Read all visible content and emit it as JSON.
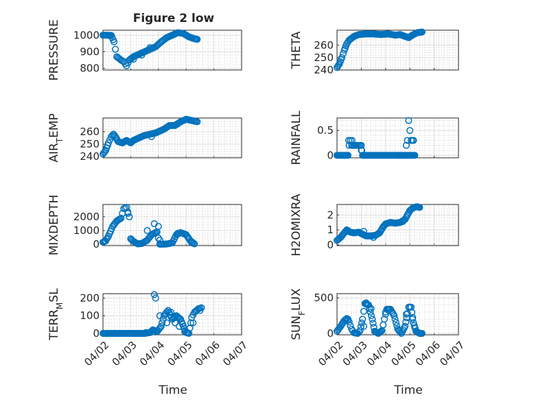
{
  "figure": {
    "title": "Figure 2 low",
    "xlabel": "Time"
  },
  "chart_data": [
    {
      "id": "pressure",
      "type": "scatter",
      "title": "Figure 2 low",
      "ylabel": "PRESSURE",
      "ylabel_sub": "",
      "xlim": [
        0,
        5
      ],
      "ylim": [
        790,
        1030
      ],
      "yticks": [
        800,
        900,
        1000
      ],
      "ytick_labels": [
        "800",
        "900",
        "1000"
      ],
      "xticks": [
        0,
        1,
        2,
        3,
        4,
        5
      ],
      "xtick_labels": [],
      "anchors": [
        [
          0,
          1000
        ],
        [
          0.15,
          1000
        ],
        [
          0.3,
          998
        ],
        [
          0.4,
          960
        ],
        [
          0.5,
          870
        ],
        [
          0.65,
          850
        ],
        [
          0.75,
          840
        ],
        [
          0.85,
          815
        ],
        [
          0.95,
          850
        ],
        [
          1.1,
          870
        ],
        [
          1.3,
          885
        ],
        [
          1.5,
          900
        ],
        [
          1.7,
          915
        ],
        [
          1.9,
          930
        ],
        [
          2.1,
          960
        ],
        [
          2.3,
          985
        ],
        [
          2.5,
          1000
        ],
        [
          2.7,
          1015
        ],
        [
          2.9,
          1010
        ],
        [
          3.1,
          990
        ],
        [
          3.3,
          978
        ],
        [
          3.4,
          975
        ]
      ],
      "extra": [
        [
          1.1,
          855
        ],
        [
          1.4,
          880
        ],
        [
          1.7,
          925
        ]
      ]
    },
    {
      "id": "theta",
      "type": "scatter",
      "title": "",
      "ylabel": "THETA",
      "ylabel_sub": "",
      "xlim": [
        0,
        5
      ],
      "ylim": [
        240,
        272
      ],
      "yticks": [
        240,
        250,
        260
      ],
      "ytick_labels": [
        "240",
        "250",
        "260"
      ],
      "xticks": [
        0,
        1,
        2,
        3,
        4,
        5
      ],
      "xtick_labels": [],
      "anchors": [
        [
          0,
          242
        ],
        [
          0.1,
          245
        ],
        [
          0.2,
          250
        ],
        [
          0.3,
          256
        ],
        [
          0.4,
          261
        ],
        [
          0.5,
          264
        ],
        [
          0.7,
          267
        ],
        [
          0.9,
          268.5
        ],
        [
          1.2,
          269
        ],
        [
          1.5,
          269
        ],
        [
          1.8,
          268.5
        ],
        [
          2.1,
          269
        ],
        [
          2.4,
          268
        ],
        [
          2.6,
          268.5
        ],
        [
          2.8,
          267
        ],
        [
          2.95,
          266
        ],
        [
          3.1,
          268
        ],
        [
          3.2,
          269
        ],
        [
          3.3,
          270
        ],
        [
          3.5,
          270.5
        ]
      ],
      "extra": []
    },
    {
      "id": "air_temp",
      "type": "scatter",
      "title": "",
      "ylabel": "AIR",
      "ylabel_sub": "T",
      "ylabel_suffix": "EMP",
      "xlim": [
        0,
        5
      ],
      "ylim": [
        239,
        271
      ],
      "yticks": [
        240,
        250,
        260
      ],
      "ytick_labels": [
        "240",
        "250",
        "260"
      ],
      "xticks": [
        0,
        1,
        2,
        3,
        4,
        5
      ],
      "xtick_labels": [],
      "anchors": [
        [
          0,
          242
        ],
        [
          0.1,
          245
        ],
        [
          0.2,
          251
        ],
        [
          0.3,
          256
        ],
        [
          0.38,
          258
        ],
        [
          0.45,
          256
        ],
        [
          0.55,
          252
        ],
        [
          0.7,
          251
        ],
        [
          0.85,
          253
        ],
        [
          1.0,
          251
        ],
        [
          1.1,
          253
        ],
        [
          1.3,
          255
        ],
        [
          1.5,
          257
        ],
        [
          1.7,
          258
        ],
        [
          1.9,
          259
        ],
        [
          2.0,
          260
        ],
        [
          2.2,
          262
        ],
        [
          2.4,
          265
        ],
        [
          2.6,
          265
        ],
        [
          2.8,
          268
        ],
        [
          3.0,
          270
        ],
        [
          3.2,
          269
        ],
        [
          3.4,
          268
        ]
      ],
      "extra": [
        [
          1.75,
          256
        ]
      ]
    },
    {
      "id": "rainfall",
      "type": "scatter",
      "title": "",
      "ylabel": "RAINFALL",
      "ylabel_sub": "",
      "xlim": [
        0,
        5
      ],
      "ylim": [
        -0.05,
        0.75
      ],
      "yticks": [
        0,
        0.5
      ],
      "ytick_labels": [
        "0",
        "0.5"
      ],
      "xticks": [
        0,
        1,
        2,
        3,
        4,
        5
      ],
      "xtick_labels": [],
      "anchors": [
        [
          0,
          0
        ],
        [
          0.45,
          0
        ],
        [
          0.5,
          0.2
        ],
        [
          0.55,
          0.3
        ],
        [
          0.6,
          0.2
        ],
        [
          0.7,
          0.2
        ],
        [
          0.8,
          0.2
        ],
        [
          0.9,
          0.2
        ],
        [
          0.95,
          0.2
        ],
        [
          1.0,
          0.1
        ],
        [
          1.05,
          0
        ],
        [
          2.5,
          0
        ],
        [
          2.9,
          0
        ],
        [
          3.0,
          0
        ],
        [
          3.1,
          0
        ],
        [
          3.2,
          0
        ]
      ],
      "extra": [
        [
          0.3,
          0
        ],
        [
          0.48,
          0.3
        ],
        [
          0.62,
          0.3
        ],
        [
          0.75,
          0.2
        ],
        [
          1.0,
          0.2
        ],
        [
          1.02,
          0.1
        ],
        [
          2.55,
          0
        ],
        [
          2.7,
          0
        ],
        [
          2.85,
          0.2
        ],
        [
          2.9,
          0.3
        ],
        [
          2.95,
          0.7
        ],
        [
          3.0,
          0.5
        ],
        [
          3.05,
          0.3
        ],
        [
          3.1,
          0.3
        ],
        [
          3.15,
          0.3
        ]
      ]
    },
    {
      "id": "mixdepth",
      "type": "scatter",
      "title": "",
      "ylabel": "MIXDEPTH",
      "ylabel_sub": "",
      "xlim": [
        0,
        5
      ],
      "ylim": [
        -100,
        2900
      ],
      "yticks": [
        0,
        1000,
        2000
      ],
      "ytick_labels": [
        "0",
        "1000",
        "2000"
      ],
      "xticks": [
        0,
        1,
        2,
        3,
        4,
        5
      ],
      "xtick_labels": [],
      "anchors": [
        [
          0,
          150
        ],
        [
          0.1,
          250
        ],
        [
          0.2,
          600
        ],
        [
          0.35,
          1300
        ],
        [
          0.5,
          1700
        ],
        [
          0.65,
          1900
        ],
        [
          0.75,
          2600
        ],
        [
          0.85,
          2700
        ],
        [
          0.95,
          2000
        ],
        [
          1.0,
          400
        ],
        [
          1.1,
          200
        ],
        [
          1.25,
          30
        ],
        [
          1.4,
          50
        ],
        [
          1.6,
          300
        ],
        [
          1.75,
          700
        ],
        [
          1.95,
          900
        ],
        [
          2.05,
          0
        ],
        [
          2.3,
          20
        ],
        [
          2.5,
          100
        ],
        [
          2.65,
          700
        ],
        [
          2.8,
          850
        ],
        [
          3.0,
          700
        ],
        [
          3.15,
          250
        ],
        [
          3.3,
          30
        ]
      ],
      "extra": [
        [
          0.9,
          2250
        ],
        [
          1.6,
          1000
        ],
        [
          1.85,
          1500
        ],
        [
          2.0,
          1300
        ],
        [
          2.05,
          300
        ],
        [
          2.7,
          800
        ],
        [
          3.2,
          100
        ]
      ]
    },
    {
      "id": "h2omixra",
      "type": "scatter",
      "title": "",
      "ylabel": "H2OMIXRA",
      "ylabel_sub": "",
      "xlim": [
        0,
        5
      ],
      "ylim": [
        -0.05,
        2.7
      ],
      "yticks": [
        0,
        1,
        2
      ],
      "ytick_labels": [
        "0",
        "1",
        "2"
      ],
      "xticks": [
        0,
        1,
        2,
        3,
        4,
        5
      ],
      "xtick_labels": [],
      "anchors": [
        [
          0,
          0.3
        ],
        [
          0.15,
          0.5
        ],
        [
          0.3,
          0.8
        ],
        [
          0.4,
          1.0
        ],
        [
          0.55,
          0.85
        ],
        [
          0.7,
          0.8
        ],
        [
          0.9,
          0.85
        ],
        [
          1.0,
          0.75
        ],
        [
          1.2,
          0.6
        ],
        [
          1.4,
          0.6
        ],
        [
          1.6,
          0.65
        ],
        [
          1.75,
          0.8
        ],
        [
          1.9,
          1.2
        ],
        [
          2.0,
          1.4
        ],
        [
          2.2,
          1.5
        ],
        [
          2.4,
          1.45
        ],
        [
          2.6,
          1.5
        ],
        [
          2.8,
          1.7
        ],
        [
          3.0,
          2.3
        ],
        [
          3.15,
          2.5
        ],
        [
          3.3,
          2.55
        ],
        [
          3.4,
          2.5
        ]
      ],
      "extra": [
        [
          1.1,
          0.9
        ],
        [
          1.5,
          0.5
        ],
        [
          2.7,
          1.55
        ]
      ]
    },
    {
      "id": "terr_msl",
      "type": "scatter",
      "title": "",
      "ylabel": "TERR",
      "ylabel_sub": "M",
      "ylabel_suffix": "SL",
      "xlim": [
        0,
        5
      ],
      "ylim": [
        -8,
        225
      ],
      "yticks": [
        0,
        100,
        200
      ],
      "ytick_labels": [
        "0",
        "100",
        "200"
      ],
      "xticks": [
        0,
        1,
        2,
        3,
        4,
        5
      ],
      "xtick_labels": [
        "04/02",
        "04/03",
        "04/04",
        "04/05",
        "04/06",
        "04/07"
      ],
      "anchors": [
        [
          0,
          0
        ],
        [
          0.5,
          0
        ],
        [
          1.0,
          0
        ],
        [
          1.5,
          0
        ],
        [
          1.7,
          5
        ],
        [
          1.8,
          20
        ],
        [
          1.95,
          10
        ],
        [
          2.1,
          40
        ],
        [
          2.2,
          100
        ],
        [
          2.35,
          130
        ],
        [
          2.5,
          80
        ],
        [
          2.65,
          100
        ],
        [
          2.8,
          80
        ],
        [
          2.9,
          40
        ],
        [
          3.0,
          5
        ],
        [
          3.1,
          0
        ],
        [
          3.2,
          90
        ],
        [
          3.3,
          120
        ],
        [
          3.45,
          140
        ],
        [
          3.55,
          145
        ]
      ],
      "extra": [
        [
          1.55,
          5
        ],
        [
          1.85,
          220
        ],
        [
          1.9,
          200
        ],
        [
          2.05,
          100
        ],
        [
          2.3,
          60
        ],
        [
          2.45,
          120
        ],
        [
          2.6,
          60
        ],
        [
          2.75,
          40
        ],
        [
          2.95,
          10
        ],
        [
          3.25,
          60
        ],
        [
          3.5,
          130
        ]
      ]
    },
    {
      "id": "sun_flux",
      "type": "scatter",
      "title": "",
      "ylabel": "SUN",
      "ylabel_sub": "F",
      "ylabel_suffix": "LUX",
      "xlim": [
        0,
        5
      ],
      "ylim": [
        -20,
        560
      ],
      "yticks": [
        0,
        500
      ],
      "ytick_labels": [
        "0",
        "500"
      ],
      "xticks": [
        0,
        1,
        2,
        3,
        4,
        5
      ],
      "xtick_labels": [
        "04/02",
        "04/03",
        "04/04",
        "04/05",
        "04/06",
        "04/07"
      ],
      "anchors": [
        [
          0,
          30
        ],
        [
          0.15,
          100
        ],
        [
          0.3,
          180
        ],
        [
          0.4,
          210
        ],
        [
          0.5,
          160
        ],
        [
          0.6,
          60
        ],
        [
          0.7,
          10
        ],
        [
          0.85,
          0
        ],
        [
          0.95,
          40
        ],
        [
          1.05,
          200
        ],
        [
          1.15,
          420
        ],
        [
          1.3,
          400
        ],
        [
          1.45,
          200
        ],
        [
          1.55,
          30
        ],
        [
          1.7,
          0
        ],
        [
          1.85,
          40
        ],
        [
          1.95,
          200
        ],
        [
          2.05,
          340
        ],
        [
          2.2,
          340
        ],
        [
          2.35,
          250
        ],
        [
          2.5,
          60
        ],
        [
          2.65,
          0
        ],
        [
          2.8,
          100
        ],
        [
          2.9,
          280
        ],
        [
          2.95,
          370
        ],
        [
          3.05,
          370
        ],
        [
          3.15,
          150
        ],
        [
          3.25,
          30
        ],
        [
          3.4,
          0
        ],
        [
          3.5,
          0
        ]
      ],
      "extra": [
        [
          0.45,
          200
        ],
        [
          1.1,
          100
        ],
        [
          1.2,
          430
        ],
        [
          1.4,
          350
        ],
        [
          2.1,
          330
        ],
        [
          2.0,
          300
        ],
        [
          2.85,
          270
        ],
        [
          3.1,
          200
        ],
        [
          3.2,
          80
        ]
      ]
    }
  ]
}
